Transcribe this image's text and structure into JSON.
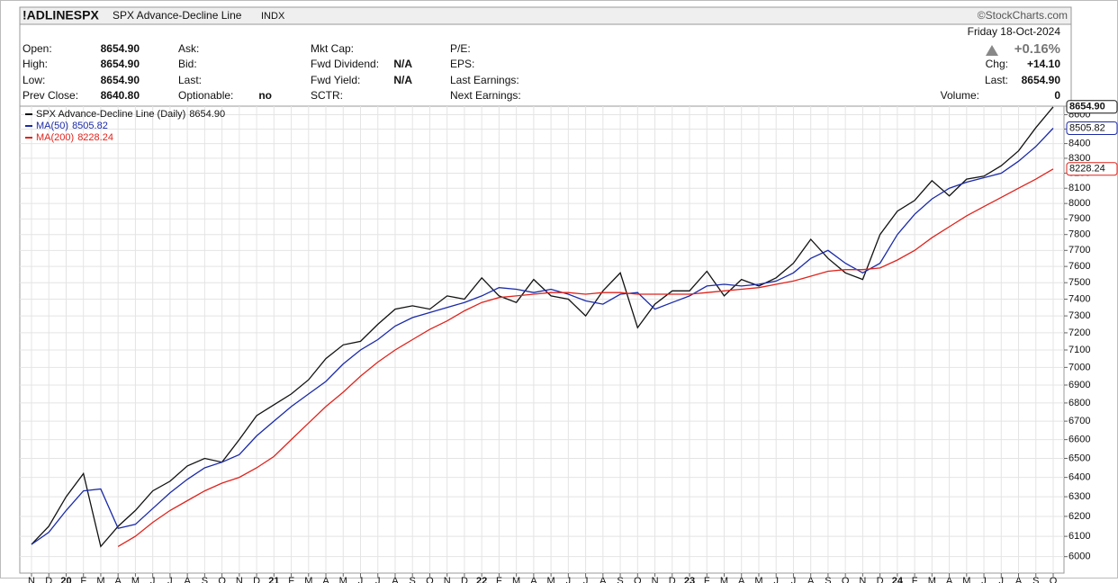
{
  "header": {
    "symbol": "!ADLINESPX",
    "name": "SPX Advance-Decline Line",
    "exchange": "INDX",
    "brand": "©StockCharts.com",
    "date": "Friday 18-Oct-2024",
    "change_pct": "+0.16%",
    "columns": [
      [
        {
          "label": "Open:",
          "value": "8654.90"
        },
        {
          "label": "High:",
          "value": "8654.90"
        },
        {
          "label": "Low:",
          "value": "8654.90"
        },
        {
          "label": "Prev Close:",
          "value": "8640.80"
        }
      ],
      [
        {
          "label": "Ask:"
        },
        {
          "label": "Bid:"
        },
        {
          "label": "Last:"
        },
        {
          "label": "Optionable:",
          "value": "no"
        }
      ],
      [
        {
          "label": "Mkt Cap:"
        },
        {
          "label": "Fwd Dividend:",
          "value": "N/A"
        },
        {
          "label": "Fwd Yield:",
          "value": "N/A"
        },
        {
          "label": "SCTR:"
        }
      ],
      [
        {
          "label": "P/E:"
        },
        {
          "label": "EPS:"
        },
        {
          "label": "Last Earnings:"
        },
        {
          "label": "Next Earnings:"
        }
      ]
    ],
    "right": [
      {
        "label": "Chg:",
        "value": "+14.10"
      },
      {
        "label": "Last:",
        "value": "8654.90"
      },
      {
        "label": "Volume:",
        "value": "0"
      }
    ]
  },
  "chart_data": {
    "type": "line",
    "log_scale": true,
    "grid": true,
    "categories": [
      "N",
      "D",
      "20",
      "F",
      "M",
      "A",
      "M",
      "J",
      "J",
      "A",
      "S",
      "O",
      "N",
      "D",
      "21",
      "F",
      "M",
      "A",
      "M",
      "J",
      "J",
      "A",
      "S",
      "O",
      "N",
      "D",
      "22",
      "F",
      "M",
      "A",
      "M",
      "J",
      "J",
      "A",
      "S",
      "O",
      "N",
      "D",
      "23",
      "F",
      "M",
      "A",
      "M",
      "J",
      "J",
      "A",
      "S",
      "O",
      "N",
      "D",
      "24",
      "F",
      "M",
      "A",
      "M",
      "J",
      "J",
      "A",
      "S",
      "O"
    ],
    "ylim": [
      5920,
      8660
    ],
    "yticks": [
      6000,
      6100,
      6200,
      6300,
      6400,
      6500,
      6600,
      6700,
      6800,
      6900,
      7000,
      7100,
      7200,
      7300,
      7400,
      7500,
      7600,
      7700,
      7800,
      7900,
      8000,
      8100,
      8200,
      8300,
      8400,
      8500,
      8600
    ],
    "series": [
      {
        "name": "SPX Advance-Decline Line (Daily)",
        "color": "#111111",
        "values": [
          6060,
          6150,
          6300,
          6420,
          6050,
          6150,
          6230,
          6330,
          6380,
          6460,
          6500,
          6480,
          6600,
          6730,
          6790,
          6850,
          6930,
          7050,
          7130,
          7150,
          7250,
          7340,
          7360,
          7340,
          7420,
          7400,
          7530,
          7420,
          7380,
          7520,
          7420,
          7400,
          7300,
          7450,
          7560,
          7230,
          7370,
          7450,
          7450,
          7570,
          7420,
          7520,
          7480,
          7530,
          7620,
          7770,
          7650,
          7560,
          7520,
          7800,
          7950,
          8020,
          8150,
          8050,
          8160,
          8180,
          8250,
          8350,
          8510,
          8654.9
        ],
        "value_labels": [
          null,
          null,
          null,
          null,
          null,
          null,
          null,
          null,
          null,
          null,
          null,
          null,
          null,
          null,
          null,
          null,
          null,
          null,
          null,
          null,
          null,
          null,
          null,
          null,
          null,
          null,
          null,
          null,
          null,
          null,
          null,
          null,
          null,
          null,
          null,
          null,
          null,
          null,
          null,
          null,
          null,
          null,
          null,
          null,
          null,
          null,
          null,
          null,
          null,
          null,
          null,
          null,
          null,
          null,
          null,
          null,
          null,
          null,
          null,
          "8654.90"
        ]
      },
      {
        "name": "MA(50)",
        "color": "#1a2aa8",
        "values": [
          6060,
          6120,
          6230,
          6330,
          6340,
          6140,
          6160,
          6240,
          6320,
          6390,
          6450,
          6480,
          6520,
          6620,
          6700,
          6780,
          6850,
          6920,
          7020,
          7100,
          7160,
          7240,
          7290,
          7320,
          7350,
          7380,
          7420,
          7470,
          7460,
          7440,
          7460,
          7430,
          7390,
          7370,
          7430,
          7440,
          7340,
          7380,
          7420,
          7480,
          7490,
          7480,
          7490,
          7510,
          7560,
          7650,
          7700,
          7620,
          7560,
          7620,
          7800,
          7930,
          8030,
          8100,
          8140,
          8170,
          8200,
          8280,
          8380,
          8505.82
        ],
        "value_labels": [
          null,
          null,
          null,
          null,
          null,
          null,
          null,
          null,
          null,
          null,
          null,
          null,
          null,
          null,
          null,
          null,
          null,
          null,
          null,
          null,
          null,
          null,
          null,
          null,
          null,
          null,
          null,
          null,
          null,
          null,
          null,
          null,
          null,
          null,
          null,
          null,
          null,
          null,
          null,
          null,
          null,
          null,
          null,
          null,
          null,
          null,
          null,
          null,
          null,
          null,
          null,
          null,
          null,
          null,
          null,
          null,
          null,
          null,
          null,
          "8505.82"
        ]
      },
      {
        "name": "MA(200)",
        "color": "#e0231c",
        "values": [
          null,
          null,
          null,
          null,
          null,
          6050,
          6100,
          6170,
          6230,
          6280,
          6330,
          6370,
          6400,
          6450,
          6510,
          6600,
          6690,
          6780,
          6860,
          6950,
          7030,
          7100,
          7160,
          7220,
          7270,
          7330,
          7380,
          7410,
          7420,
          7430,
          7440,
          7440,
          7430,
          7440,
          7440,
          7430,
          7430,
          7430,
          7430,
          7440,
          7450,
          7460,
          7470,
          7490,
          7510,
          7540,
          7570,
          7580,
          7580,
          7590,
          7640,
          7700,
          7780,
          7850,
          7920,
          7980,
          8040,
          8100,
          8160,
          8228.24
        ],
        "value_labels": [
          null,
          null,
          null,
          null,
          null,
          null,
          null,
          null,
          null,
          null,
          null,
          null,
          null,
          null,
          null,
          null,
          null,
          null,
          null,
          null,
          null,
          null,
          null,
          null,
          null,
          null,
          null,
          null,
          null,
          null,
          null,
          null,
          null,
          null,
          null,
          null,
          null,
          null,
          null,
          null,
          null,
          null,
          null,
          null,
          null,
          null,
          null,
          null,
          null,
          null,
          null,
          null,
          null,
          null,
          null,
          null,
          null,
          null,
          null,
          "8228.24"
        ]
      }
    ]
  }
}
